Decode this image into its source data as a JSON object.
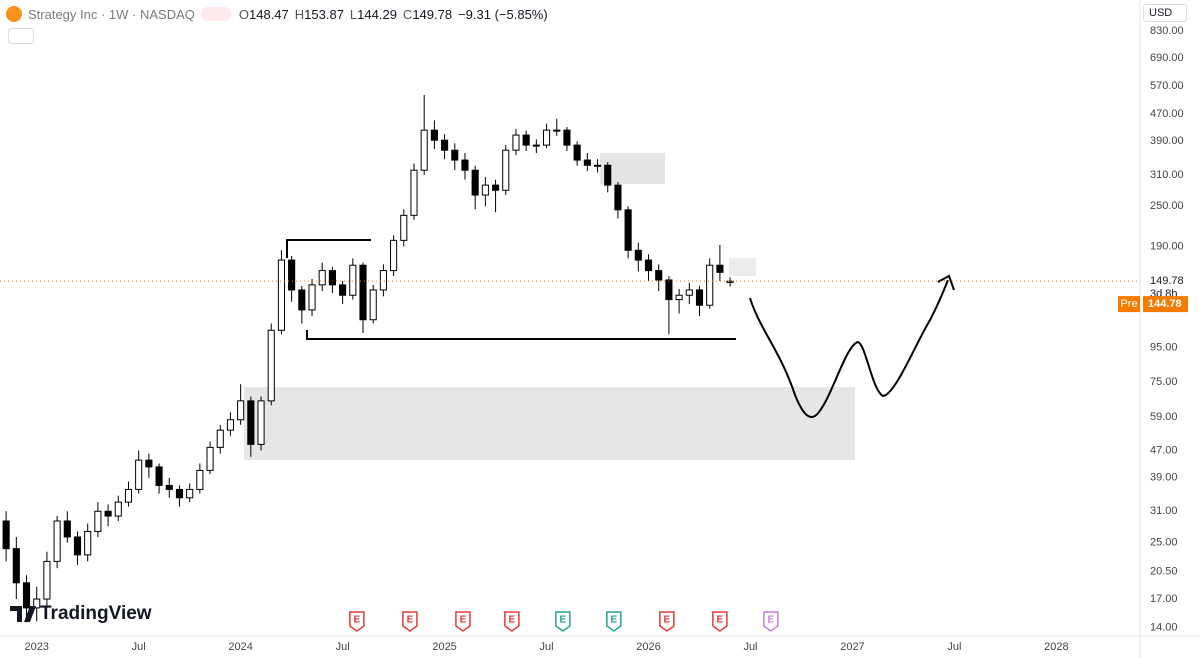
{
  "chart_data": {
    "type": "candlestick",
    "title": "Strategy Inc · 1W · NASDAQ",
    "legend": [
      {
        "label": "O",
        "value": 148.47
      },
      {
        "label": "H",
        "value": 153.87
      },
      {
        "label": "L",
        "value": 144.29
      },
      {
        "label": "C",
        "value": 149.78
      }
    ],
    "change": "−9.31 (−5.85%)",
    "currency": "USD",
    "countdown": "3d 8h",
    "pre_market": {
      "label": "Pre",
      "price": 144.78
    },
    "brand": "TradingView",
    "log_scale": true,
    "grid": false,
    "up_color": "#ffffff",
    "down_color": "#000000",
    "wick_color": "#000000",
    "price_line_color": "#f57c00",
    "xlim": [
      2022.82,
      2028.41
    ],
    "ylim": [
      13.2,
      1026
    ],
    "xticks": [
      {
        "value": 2023,
        "label": "2023"
      },
      {
        "value": 2023.5,
        "label": "Jul"
      },
      {
        "value": 2024,
        "label": "2024"
      },
      {
        "value": 2024.5,
        "label": "Jul"
      },
      {
        "value": 2025,
        "label": "2025"
      },
      {
        "value": 2025.5,
        "label": "Jul"
      },
      {
        "value": 2026,
        "label": "2026"
      },
      {
        "value": 2026.5,
        "label": "Jul"
      },
      {
        "value": 2027,
        "label": "2027"
      },
      {
        "value": 2027.5,
        "label": "Jul"
      },
      {
        "value": 2028,
        "label": "2028"
      }
    ],
    "yticks": [
      {
        "value": 830,
        "label": "830.00"
      },
      {
        "value": 690,
        "label": "690.00"
      },
      {
        "value": 570,
        "label": "570.00"
      },
      {
        "value": 470,
        "label": "470.00"
      },
      {
        "value": 390,
        "label": "390.00"
      },
      {
        "value": 310,
        "label": "310.00"
      },
      {
        "value": 250,
        "label": "250.00"
      },
      {
        "value": 190,
        "label": "190.00"
      },
      {
        "value": 95,
        "label": "95.00"
      },
      {
        "value": 75,
        "label": "75.00"
      },
      {
        "value": 59,
        "label": "59.00"
      },
      {
        "value": 47,
        "label": "47.00"
      },
      {
        "value": 39,
        "label": "39.00"
      },
      {
        "value": 31,
        "label": "31.00"
      },
      {
        "value": 25,
        "label": "25.00"
      },
      {
        "value": 20.5,
        "label": "20.50"
      },
      {
        "value": 17,
        "label": "17.00"
      },
      {
        "value": 14,
        "label": "14.00"
      }
    ],
    "x": [
      2022.85,
      2022.9,
      2022.95,
      2023.0,
      2023.05,
      2023.1,
      2023.15,
      2023.2,
      2023.25,
      2023.3,
      2023.35,
      2023.4,
      2023.45,
      2023.5,
      2023.55,
      2023.6,
      2023.65,
      2023.7,
      2023.75,
      2023.8,
      2023.85,
      2023.9,
      2023.95,
      2024.0,
      2024.05,
      2024.1,
      2024.15,
      2024.2,
      2024.25,
      2024.3,
      2024.35,
      2024.4,
      2024.45,
      2024.5,
      2024.55,
      2024.6,
      2024.65,
      2024.7,
      2024.75,
      2024.8,
      2024.85,
      2024.9,
      2024.95,
      2025.0,
      2025.05,
      2025.1,
      2025.15,
      2025.2,
      2025.25,
      2025.3,
      2025.35,
      2025.4,
      2025.45,
      2025.5,
      2025.55,
      2025.6,
      2025.65,
      2025.7,
      2025.75,
      2025.8,
      2025.85,
      2025.9,
      2025.95,
      2026.0,
      2026.05,
      2026.1,
      2026.15,
      2026.2,
      2026.25,
      2026.3,
      2026.35,
      2026.4
    ],
    "open": [
      29,
      24,
      19,
      16,
      17,
      22,
      29,
      26,
      23,
      27,
      31,
      30,
      33,
      36,
      44,
      42,
      37,
      36,
      34,
      36,
      41,
      48,
      54,
      58,
      66,
      49,
      66,
      107,
      173,
      141,
      123,
      146,
      161,
      146,
      136,
      167,
      115,
      141,
      161,
      198,
      235,
      320,
      421,
      393,
      367,
      343,
      320,
      270,
      289,
      279,
      367,
      407,
      380,
      380,
      421,
      421,
      380,
      343,
      331,
      331,
      289,
      244,
      185,
      173,
      161,
      151,
      132,
      136,
      141,
      127,
      167,
      148.47
    ],
    "high": [
      31,
      26,
      20,
      18.5,
      23.5,
      30,
      31,
      27,
      28.5,
      33,
      32.5,
      34.5,
      38,
      47,
      46,
      43,
      39,
      37,
      37.5,
      43,
      50,
      56,
      61,
      74,
      68,
      68,
      112,
      185,
      178,
      145,
      152,
      170,
      165,
      150,
      175,
      170,
      146,
      168,
      205,
      245,
      335,
      536,
      450,
      410,
      385,
      360,
      330,
      305,
      300,
      380,
      425,
      420,
      395,
      440,
      455,
      430,
      390,
      360,
      345,
      338,
      295,
      250,
      195,
      180,
      168,
      155,
      142,
      148,
      145,
      175,
      192,
      153.87
    ],
    "low": [
      22,
      17,
      14.5,
      14.6,
      16,
      21,
      25,
      21.5,
      22,
      26,
      28,
      29,
      32,
      35,
      39,
      35,
      34,
      32,
      33,
      35,
      40,
      46,
      52,
      56,
      45,
      47,
      64,
      104,
      130,
      112,
      118,
      140,
      138,
      128,
      132,
      105,
      112,
      135,
      155,
      190,
      228,
      310,
      370,
      345,
      320,
      300,
      245,
      250,
      240,
      270,
      355,
      365,
      360,
      372,
      405,
      365,
      330,
      318,
      315,
      275,
      230,
      175,
      160,
      150,
      140,
      104,
      120,
      128,
      118,
      124,
      150,
      144.29
    ],
    "close": [
      24,
      19,
      16,
      17,
      22,
      29,
      26,
      23,
      27,
      31,
      30,
      33,
      36,
      44,
      42,
      37,
      36,
      34,
      36,
      41,
      48,
      54,
      58,
      66,
      49,
      66,
      107,
      173,
      141,
      123,
      146,
      161,
      146,
      136,
      167,
      115,
      141,
      161,
      198,
      235,
      320,
      421,
      393,
      367,
      343,
      320,
      270,
      289,
      279,
      367,
      407,
      380,
      380,
      421,
      421,
      380,
      343,
      331,
      331,
      289,
      244,
      185,
      173,
      161,
      151,
      132,
      136,
      141,
      127,
      167,
      159.09,
      149.78
    ],
    "events": [
      {
        "x": 2024.57,
        "label": "E",
        "color": "#e53935"
      },
      {
        "x": 2024.83,
        "label": "E",
        "color": "#e53935"
      },
      {
        "x": 2025.09,
        "label": "E",
        "color": "#e53935"
      },
      {
        "x": 2025.33,
        "label": "E",
        "color": "#e53935"
      },
      {
        "x": 2025.58,
        "label": "E",
        "color": "#22a68a"
      },
      {
        "x": 2025.83,
        "label": "E",
        "color": "#22a68a"
      },
      {
        "x": 2026.09,
        "label": "E",
        "color": "#e53935"
      },
      {
        "x": 2026.35,
        "label": "E",
        "color": "#e53935"
      },
      {
        "x": 2026.6,
        "label": "E",
        "color": "#c77ddb"
      }
    ]
  }
}
